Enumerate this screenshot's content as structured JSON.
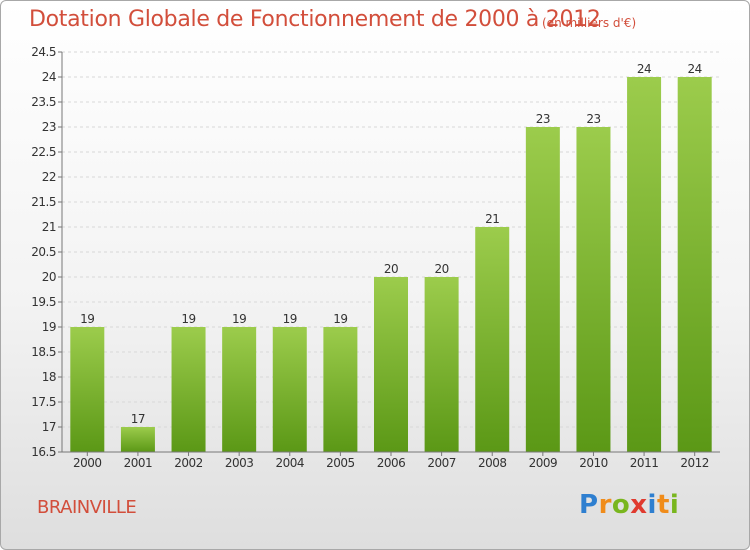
{
  "title": "Dotation Globale de Fonctionnement de 2000 à 2012",
  "subtitle": "(en milliers d'€)",
  "commune": "BRAINVILLE",
  "logo": {
    "letters": [
      "P",
      "r",
      "o",
      "x",
      "i",
      "t",
      "i"
    ],
    "colors": [
      "#2e7fd0",
      "#f08c1a",
      "#79b61e",
      "#e03a2f",
      "#2e7fd0",
      "#f08c1a",
      "#79b61e"
    ]
  },
  "chart_data": {
    "type": "bar",
    "categories": [
      "2000",
      "2001",
      "2002",
      "2003",
      "2004",
      "2005",
      "2006",
      "2007",
      "2008",
      "2009",
      "2010",
      "2011",
      "2012"
    ],
    "values": [
      19,
      17,
      19,
      19,
      19,
      19,
      20,
      20,
      21,
      23,
      23,
      24,
      24
    ],
    "data_labels": [
      "19",
      "17",
      "19",
      "19",
      "19",
      "19",
      "20",
      "20",
      "21",
      "23",
      "23",
      "24",
      "24"
    ],
    "ylim": [
      16.5,
      24.5
    ],
    "yticks": [
      16.5,
      17,
      17.5,
      18,
      18.5,
      19,
      19.5,
      20,
      20.5,
      21,
      21.5,
      22,
      22.5,
      23,
      23.5,
      24,
      24.5
    ],
    "ytick_labels": [
      "16.5",
      "17",
      "17.5",
      "18",
      "18.5",
      "19",
      "19.5",
      "20",
      "20.5",
      "21",
      "21.5",
      "22",
      "22.5",
      "23",
      "23.5",
      "24",
      "24.5"
    ],
    "grid": true,
    "bar_color_top": "#9ccc4c",
    "bar_color_bottom": "#5b9816"
  }
}
